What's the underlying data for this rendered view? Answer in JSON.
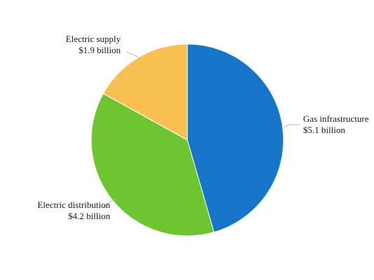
{
  "chart_data": {
    "type": "pie",
    "title": "",
    "categories": [
      "Gas infrastructure",
      "Electric distribution",
      "Electric supply"
    ],
    "values": [
      5.1,
      4.2,
      1.9
    ],
    "value_labels": [
      "$5.1 billion",
      "$4.2 billion",
      "$1.9 billion"
    ],
    "unit": "billion USD",
    "colors": [
      "#1775c8",
      "#6dc52f",
      "#f9c151"
    ],
    "start": "12 o'clock",
    "direction": "clockwise",
    "legend": "none",
    "labels_outside": true
  }
}
